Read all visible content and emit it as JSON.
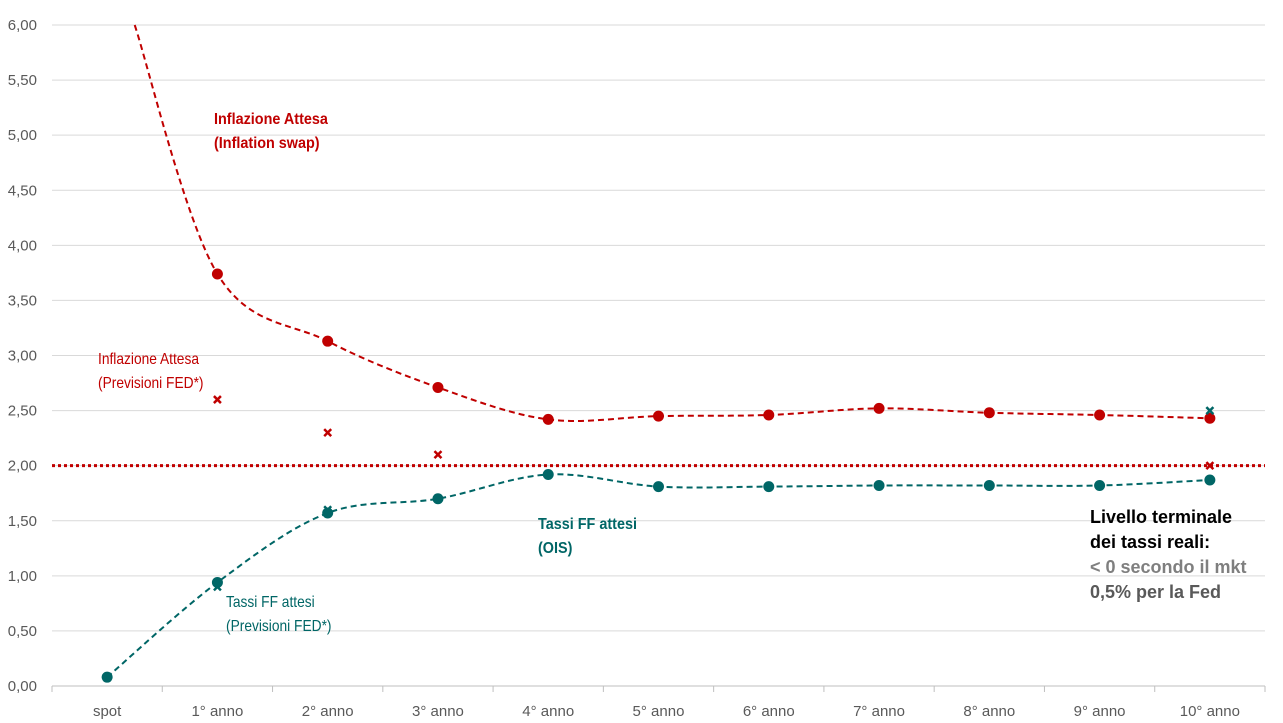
{
  "chart_data": {
    "type": "line",
    "categories": [
      "spot",
      "1° anno",
      "2° anno",
      "3° anno",
      "4° anno",
      "5° anno",
      "6° anno",
      "7° anno",
      "8° anno",
      "9° anno",
      "10° anno"
    ],
    "yticks": [
      "0,00",
      "0,50",
      "1,00",
      "1,50",
      "2,00",
      "2,50",
      "3,00",
      "3,50",
      "4,00",
      "4,50",
      "5,00",
      "5,50",
      "6,00"
    ],
    "ylim": [
      0,
      6
    ],
    "grid": true,
    "series": [
      {
        "key": "inflation_swap",
        "style": "dashed-line-markers",
        "color": "#c00000",
        "curve_start": [
          0.25,
          6.0
        ],
        "values": [
          null,
          3.74,
          3.13,
          2.71,
          2.42,
          2.45,
          2.46,
          2.52,
          2.48,
          2.46,
          2.43
        ]
      },
      {
        "key": "ff_ois",
        "style": "dashed-line-markers",
        "color": "#006666",
        "values": [
          0.08,
          0.94,
          1.57,
          1.7,
          1.92,
          1.81,
          1.81,
          1.82,
          1.82,
          1.82,
          1.87
        ]
      },
      {
        "key": "fed_inflation",
        "style": "cross",
        "color": "#c00000",
        "values": [
          null,
          2.6,
          2.3,
          2.1,
          null,
          null,
          null,
          null,
          null,
          null,
          2.0
        ]
      },
      {
        "key": "fed_ff",
        "style": "cross",
        "color": "#006666",
        "values": [
          null,
          0.9,
          1.6,
          null,
          null,
          null,
          null,
          null,
          null,
          null,
          2.5
        ]
      }
    ],
    "reference_line": {
      "value": 2.0,
      "color": "#c00000",
      "style": "dotted"
    }
  },
  "annotations": {
    "inflation_swap": [
      "Inflazione Attesa",
      "(Inflation swap)"
    ],
    "fed_inflation": [
      "Inflazione Attesa",
      "(Previsioni FED*)"
    ],
    "ff_ois": [
      "Tassi FF attesi",
      "(OIS)"
    ],
    "fed_ff": [
      "Tassi FF attesi",
      "(Previsioni FED*)"
    ],
    "terminal": {
      "line1": "Livello terminale",
      "line2": "dei tassi reali:",
      "line3": "< 0 secondo il mkt",
      "line4": "0,5% per la Fed"
    }
  }
}
